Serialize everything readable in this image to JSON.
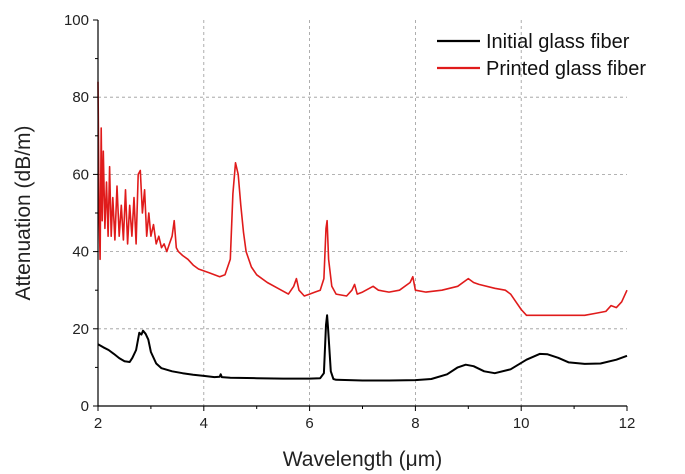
{
  "chart_data": {
    "type": "line",
    "xlabel": "Wavelength (μm)",
    "ylabel": "Attenuation (dB/m)",
    "xlim": [
      2,
      12
    ],
    "ylim": [
      0,
      100
    ],
    "x_ticks": [
      "2",
      "4",
      "6",
      "8",
      "10",
      "12"
    ],
    "y_ticks": [
      "0",
      "20",
      "40",
      "60",
      "80",
      "100"
    ],
    "grid": "dashed vertical and horizontal gridlines",
    "legend_position": "top-right",
    "series": [
      {
        "name": "Initial glass fiber",
        "color": "#000000",
        "points": [
          [
            2.0,
            16
          ],
          [
            2.1,
            15.2
          ],
          [
            2.2,
            14.5
          ],
          [
            2.3,
            13.5
          ],
          [
            2.4,
            12.4
          ],
          [
            2.5,
            11.6
          ],
          [
            2.6,
            11.4
          ],
          [
            2.65,
            12.5
          ],
          [
            2.72,
            14.5
          ],
          [
            2.78,
            19
          ],
          [
            2.82,
            18.5
          ],
          [
            2.85,
            19.5
          ],
          [
            2.9,
            18.7
          ],
          [
            2.95,
            17.2
          ],
          [
            3.0,
            14
          ],
          [
            3.1,
            11
          ],
          [
            3.2,
            9.8
          ],
          [
            3.4,
            9
          ],
          [
            3.6,
            8.5
          ],
          [
            3.8,
            8.1
          ],
          [
            4.0,
            7.8
          ],
          [
            4.2,
            7.5
          ],
          [
            4.3,
            7.6
          ],
          [
            4.32,
            8.2
          ],
          [
            4.34,
            7.5
          ],
          [
            4.5,
            7.3
          ],
          [
            5.0,
            7.2
          ],
          [
            5.5,
            7.1
          ],
          [
            6.0,
            7.1
          ],
          [
            6.2,
            7.2
          ],
          [
            6.27,
            8.5
          ],
          [
            6.31,
            21
          ],
          [
            6.33,
            23.5
          ],
          [
            6.35,
            20
          ],
          [
            6.4,
            9
          ],
          [
            6.45,
            7
          ],
          [
            6.5,
            6.8
          ],
          [
            7.0,
            6.6
          ],
          [
            7.5,
            6.6
          ],
          [
            8.0,
            6.7
          ],
          [
            8.3,
            7
          ],
          [
            8.6,
            8.2
          ],
          [
            8.8,
            10
          ],
          [
            8.95,
            10.7
          ],
          [
            9.1,
            10.3
          ],
          [
            9.3,
            9
          ],
          [
            9.5,
            8.5
          ],
          [
            9.8,
            9.5
          ],
          [
            10.1,
            12
          ],
          [
            10.35,
            13.5
          ],
          [
            10.5,
            13.4
          ],
          [
            10.7,
            12.5
          ],
          [
            10.9,
            11.3
          ],
          [
            11.2,
            10.9
          ],
          [
            11.5,
            11
          ],
          [
            11.8,
            12
          ],
          [
            12.0,
            13
          ]
        ]
      },
      {
        "name": "Printed glass fiber",
        "color": "#e01b1b",
        "points": [
          [
            2.0,
            84
          ],
          [
            2.02,
            50
          ],
          [
            2.04,
            38
          ],
          [
            2.06,
            72
          ],
          [
            2.08,
            48
          ],
          [
            2.1,
            66
          ],
          [
            2.13,
            46
          ],
          [
            2.16,
            58
          ],
          [
            2.19,
            44
          ],
          [
            2.22,
            62
          ],
          [
            2.25,
            44
          ],
          [
            2.28,
            54
          ],
          [
            2.32,
            43
          ],
          [
            2.36,
            57
          ],
          [
            2.4,
            44
          ],
          [
            2.44,
            52
          ],
          [
            2.48,
            43
          ],
          [
            2.52,
            56
          ],
          [
            2.56,
            42
          ],
          [
            2.6,
            52
          ],
          [
            2.64,
            44
          ],
          [
            2.68,
            54
          ],
          [
            2.72,
            42
          ],
          [
            2.76,
            60
          ],
          [
            2.8,
            61
          ],
          [
            2.84,
            50
          ],
          [
            2.88,
            56
          ],
          [
            2.92,
            44
          ],
          [
            2.96,
            50
          ],
          [
            3.0,
            44
          ],
          [
            3.05,
            47
          ],
          [
            3.1,
            42
          ],
          [
            3.15,
            44
          ],
          [
            3.2,
            41
          ],
          [
            3.25,
            42
          ],
          [
            3.3,
            40
          ],
          [
            3.35,
            42
          ],
          [
            3.4,
            44
          ],
          [
            3.44,
            48
          ],
          [
            3.48,
            41
          ],
          [
            3.52,
            40
          ],
          [
            3.6,
            39
          ],
          [
            3.7,
            38
          ],
          [
            3.8,
            36.5
          ],
          [
            3.9,
            35.5
          ],
          [
            4.0,
            35
          ],
          [
            4.1,
            34.5
          ],
          [
            4.2,
            34
          ],
          [
            4.3,
            33.5
          ],
          [
            4.4,
            34
          ],
          [
            4.5,
            38
          ],
          [
            4.55,
            55
          ],
          [
            4.6,
            63
          ],
          [
            4.65,
            60
          ],
          [
            4.7,
            52
          ],
          [
            4.75,
            45
          ],
          [
            4.8,
            40
          ],
          [
            4.9,
            36
          ],
          [
            5.0,
            34
          ],
          [
            5.2,
            32
          ],
          [
            5.4,
            30.5
          ],
          [
            5.6,
            29
          ],
          [
            5.7,
            31
          ],
          [
            5.75,
            33
          ],
          [
            5.8,
            30
          ],
          [
            5.9,
            28.5
          ],
          [
            6.0,
            29
          ],
          [
            6.1,
            29.5
          ],
          [
            6.2,
            30
          ],
          [
            6.27,
            33
          ],
          [
            6.31,
            46
          ],
          [
            6.33,
            48
          ],
          [
            6.36,
            38
          ],
          [
            6.42,
            31
          ],
          [
            6.5,
            29
          ],
          [
            6.7,
            28.5
          ],
          [
            6.8,
            30
          ],
          [
            6.85,
            31.5
          ],
          [
            6.9,
            29
          ],
          [
            7.0,
            29.5
          ],
          [
            7.2,
            31
          ],
          [
            7.3,
            30
          ],
          [
            7.5,
            29.5
          ],
          [
            7.7,
            30
          ],
          [
            7.9,
            32
          ],
          [
            7.95,
            33.5
          ],
          [
            8.0,
            30
          ],
          [
            8.2,
            29.5
          ],
          [
            8.5,
            30
          ],
          [
            8.8,
            31
          ],
          [
            9.0,
            33
          ],
          [
            9.1,
            32
          ],
          [
            9.2,
            31.5
          ],
          [
            9.5,
            30.5
          ],
          [
            9.7,
            30
          ],
          [
            9.8,
            29
          ],
          [
            9.9,
            27
          ],
          [
            10.0,
            25
          ],
          [
            10.1,
            23.5
          ],
          [
            10.3,
            23.5
          ],
          [
            10.6,
            23.5
          ],
          [
            10.9,
            23.5
          ],
          [
            11.2,
            23.5
          ],
          [
            11.4,
            24
          ],
          [
            11.6,
            24.5
          ],
          [
            11.7,
            26
          ],
          [
            11.8,
            25.5
          ],
          [
            11.9,
            27
          ],
          [
            12.0,
            30
          ]
        ]
      }
    ]
  }
}
